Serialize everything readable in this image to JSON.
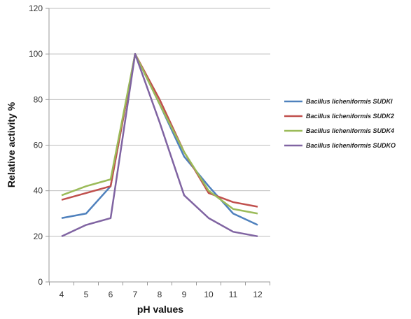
{
  "chart_data": {
    "type": "line",
    "xlabel": "pH values",
    "ylabel": "Relative activity %",
    "x": [
      4,
      5,
      6,
      7,
      8,
      9,
      10,
      11,
      12
    ],
    "y_ticks": [
      0,
      20,
      40,
      60,
      80,
      100,
      120
    ],
    "ylim": [
      0,
      120
    ],
    "grid": "horizontal",
    "legend_position": "right",
    "series": [
      {
        "name": "Bacillus licheniformis SUDKI",
        "color": "#4f81bd",
        "values": [
          28,
          30,
          42,
          100,
          78,
          55,
          42,
          30,
          25
        ]
      },
      {
        "name": "Bacillus licheniformis SUDK2",
        "color": "#c0504d",
        "values": [
          36,
          39,
          42,
          100,
          80,
          57,
          39,
          35,
          33
        ]
      },
      {
        "name": "Bacillus licheniformis SUDK4",
        "color": "#9bbb59",
        "values": [
          38,
          42,
          45,
          100,
          78,
          57,
          40,
          32,
          30
        ]
      },
      {
        "name": "Bacillus licheniformis SUDKO",
        "color": "#8064a2",
        "values": [
          20,
          25,
          28,
          100,
          70,
          38,
          28,
          22,
          20
        ]
      }
    ]
  }
}
